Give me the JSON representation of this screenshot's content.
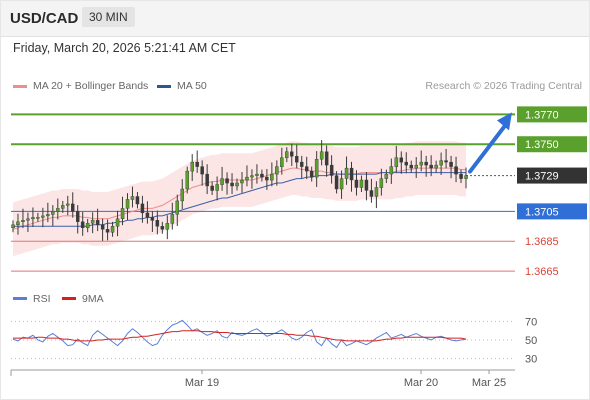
{
  "header": {
    "symbol": "USD/CAD",
    "timeframe": "30 MIN",
    "datetime": "Friday, March 20, 2026 5:21:41 AM CET"
  },
  "legend": {
    "items": [
      {
        "label": "MA 20 + Bollinger Bands",
        "color": "#f08c8c"
      },
      {
        "label": "MA 50",
        "color": "#2f5597"
      }
    ],
    "credit": "Research © 2026 Trading Central"
  },
  "chart_data": [
    {
      "type": "candlestick",
      "x_labels": [
        "Mar 19",
        "Mar 20",
        "Mar 25"
      ],
      "ylim": [
        1.3655,
        1.3785
      ],
      "current_price": 1.3729,
      "levels": [
        {
          "label": "1.3770",
          "value": 1.377,
          "kind": "resistance",
          "color": "#5aa02c"
        },
        {
          "label": "1.3750",
          "value": 1.375,
          "kind": "resistance",
          "color": "#5aa02c"
        },
        {
          "label": "1.3729",
          "value": 1.3729,
          "kind": "current",
          "color": "#333333"
        },
        {
          "label": "1.3705",
          "value": 1.3705,
          "kind": "pivot",
          "color": "#2f6fd6"
        },
        {
          "label": "1.3685",
          "value": 1.3685,
          "kind": "support",
          "color": "#e57373"
        },
        {
          "label": "1.3665",
          "value": 1.3665,
          "kind": "support",
          "color": "#e57373"
        }
      ],
      "forecast_target": 1.377,
      "closes": [
        1.3696,
        1.3698,
        1.3699,
        1.37,
        1.3701,
        1.3701,
        1.3702,
        1.3703,
        1.3705,
        1.3707,
        1.3709,
        1.371,
        1.3705,
        1.3698,
        1.3694,
        1.3697,
        1.3699,
        1.3696,
        1.3693,
        1.3691,
        1.3695,
        1.37,
        1.3707,
        1.3713,
        1.3715,
        1.371,
        1.3704,
        1.3701,
        1.3699,
        1.3695,
        1.3693,
        1.3697,
        1.3703,
        1.3712,
        1.372,
        1.3732,
        1.3738,
        1.3735,
        1.373,
        1.3722,
        1.3719,
        1.3723,
        1.3727,
        1.3724,
        1.3722,
        1.3724,
        1.3726,
        1.3728,
        1.3729,
        1.373,
        1.3728,
        1.3726,
        1.373,
        1.3735,
        1.3741,
        1.3745,
        1.3742,
        1.3738,
        1.3735,
        1.3732,
        1.3728,
        1.374,
        1.3745,
        1.3736,
        1.3729,
        1.372,
        1.3727,
        1.3734,
        1.3726,
        1.3721,
        1.3726,
        1.3719,
        1.3715,
        1.3721,
        1.3727,
        1.373,
        1.3735,
        1.3741,
        1.3738,
        1.3736,
        1.3734,
        1.3736,
        1.3738,
        1.3736,
        1.3734,
        1.3736,
        1.3739,
        1.3738,
        1.3735,
        1.373,
        1.3727,
        1.3729
      ],
      "ma20": [
        1.3693,
        1.3694,
        1.3695,
        1.3696,
        1.3697,
        1.3698,
        1.3699,
        1.37,
        1.3701,
        1.3701,
        1.3702,
        1.3702,
        1.3702,
        1.3702,
        1.3701,
        1.3701,
        1.37,
        1.37,
        1.37,
        1.37,
        1.3701,
        1.3702,
        1.3703,
        1.3704,
        1.3705,
        1.3706,
        1.3707,
        1.3707,
        1.3707,
        1.3708,
        1.3709,
        1.3711,
        1.3713,
        1.3715,
        1.3717,
        1.3719,
        1.3721,
        1.3722,
        1.3723,
        1.3724,
        1.3725,
        1.3725,
        1.3726,
        1.3726,
        1.3726,
        1.3726,
        1.3726,
        1.3726,
        1.3726,
        1.3727,
        1.3728,
        1.3729,
        1.373,
        1.3731,
        1.3732,
        1.3733,
        1.3734,
        1.3734,
        1.3733,
        1.3733,
        1.3732,
        1.3732,
        1.3732,
        1.3731,
        1.3731,
        1.373,
        1.373,
        1.373,
        1.373,
        1.373,
        1.3731,
        1.3731,
        1.3731,
        1.3731,
        1.3731,
        1.3731,
        1.3731,
        1.3732,
        1.3732,
        1.3733,
        1.3733,
        1.3734,
        1.3734,
        1.3734,
        1.3734,
        1.3734,
        1.3734,
        1.3734,
        1.3734,
        1.3734,
        1.3733,
        1.3733
      ],
      "ma50": [
        1.3695,
        1.3695,
        1.3695,
        1.3695,
        1.3695,
        1.3695,
        1.3695,
        1.3695,
        1.3695,
        1.3695,
        1.3695,
        1.3695,
        1.3695,
        1.3695,
        1.3695,
        1.3695,
        1.3696,
        1.3696,
        1.3696,
        1.3697,
        1.3697,
        1.3698,
        1.3698,
        1.3699,
        1.3699,
        1.37,
        1.37,
        1.3701,
        1.3701,
        1.3702,
        1.3702,
        1.3703,
        1.3704,
        1.3705,
        1.3706,
        1.3707,
        1.3708,
        1.3709,
        1.371,
        1.3711,
        1.3712,
        1.3713,
        1.3714,
        1.3714,
        1.3715,
        1.3716,
        1.3717,
        1.3718,
        1.3719,
        1.372,
        1.3721,
        1.3722,
        1.3723,
        1.3724,
        1.3724,
        1.3725,
        1.3726,
        1.3727,
        1.3727,
        1.3728,
        1.3728,
        1.3729,
        1.3729,
        1.3729,
        1.373,
        1.373,
        1.373,
        1.373,
        1.373,
        1.373,
        1.373,
        1.373,
        1.373,
        1.373,
        1.3731,
        1.3731,
        1.3731,
        1.3731,
        1.3731,
        1.3731,
        1.3731,
        1.3731,
        1.3731,
        1.3731,
        1.3731,
        1.3731,
        1.3731,
        1.3731,
        1.3731,
        1.3731,
        1.3731,
        1.3731
      ],
      "band_width": 0.0018
    },
    {
      "type": "line",
      "legend": [
        {
          "label": "RSI",
          "color": "#5b7fd6"
        },
        {
          "label": "9MA",
          "color": "#d62020"
        }
      ],
      "ylim": [
        20,
        80
      ],
      "ticks": [
        70,
        50,
        30
      ],
      "rsi": [
        51,
        49,
        53,
        52,
        55,
        50,
        48,
        54,
        57,
        53,
        49,
        44,
        45,
        51,
        47,
        44,
        55,
        60,
        56,
        52,
        48,
        44,
        49,
        57,
        62,
        58,
        53,
        48,
        44,
        46,
        55,
        61,
        66,
        68,
        71,
        66,
        60,
        62,
        58,
        55,
        57,
        60,
        54,
        52,
        58,
        56,
        55,
        57,
        60,
        62,
        58,
        54,
        56,
        58,
        61,
        57,
        52,
        50,
        53,
        58,
        61,
        48,
        44,
        52,
        46,
        42,
        50,
        44,
        46,
        49,
        47,
        45,
        48,
        52,
        55,
        58,
        52,
        54,
        56,
        53,
        55,
        57,
        54,
        52,
        50,
        53,
        54,
        52,
        50,
        49,
        50,
        51
      ],
      "ma9": [
        52,
        52,
        52,
        52,
        52,
        53,
        53,
        52,
        52,
        52,
        51,
        51,
        50,
        49,
        49,
        49,
        49,
        50,
        50,
        51,
        51,
        51,
        51,
        52,
        53,
        53,
        54,
        54,
        55,
        56,
        57,
        58,
        59,
        59,
        60,
        60,
        60,
        60,
        59,
        59,
        59,
        58,
        58,
        58,
        57,
        57,
        57,
        57,
        57,
        57,
        57,
        57,
        57,
        57,
        57,
        56,
        56,
        55,
        55,
        55,
        54,
        54,
        53,
        52,
        51,
        50,
        50,
        49,
        49,
        49,
        49,
        49,
        49,
        49,
        50,
        51,
        51,
        52,
        52,
        53,
        53,
        53,
        53,
        53,
        53,
        53,
        53,
        52,
        52,
        52,
        52,
        51
      ]
    }
  ]
}
